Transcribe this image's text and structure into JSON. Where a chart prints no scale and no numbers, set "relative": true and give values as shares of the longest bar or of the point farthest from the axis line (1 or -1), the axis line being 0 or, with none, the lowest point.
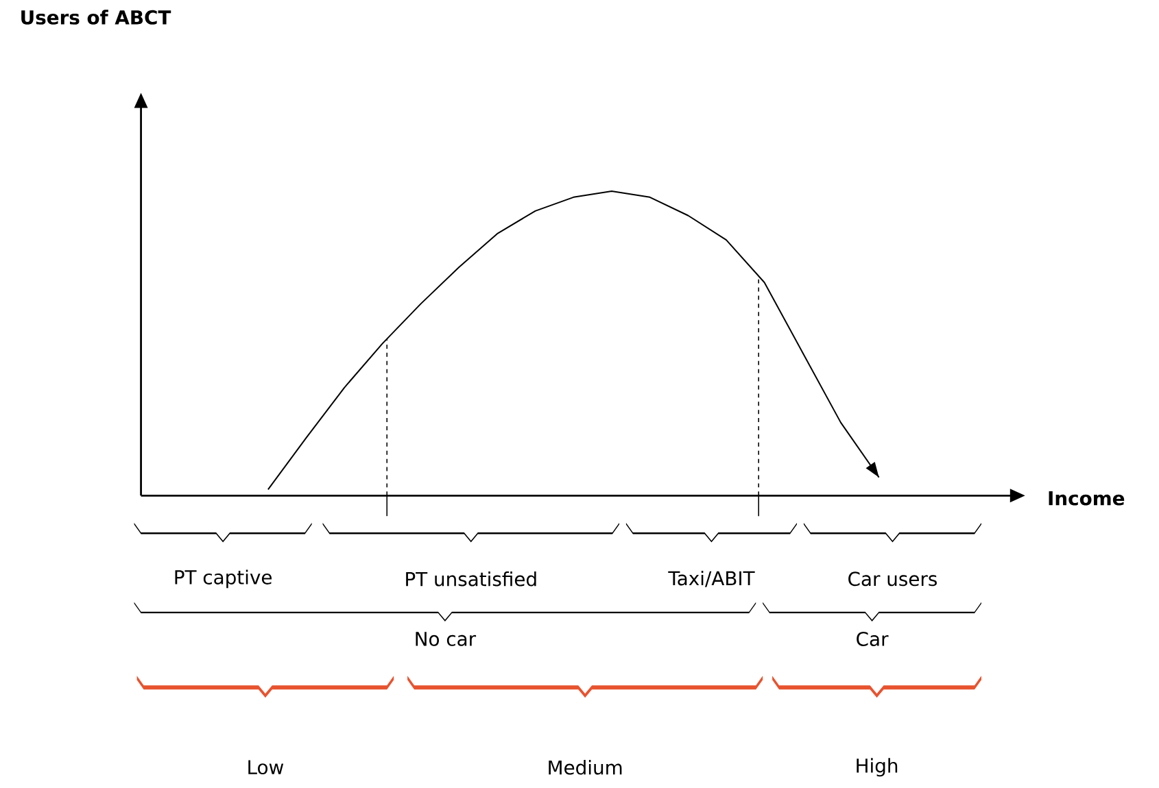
{
  "chart_data": {
    "type": "line",
    "relative": true,
    "tick_labels": false,
    "marker": "none",
    "line_style": "solid",
    "categories": [
      null,
      null,
      null,
      null,
      null,
      null,
      null,
      null,
      null,
      null,
      null,
      null,
      null,
      null,
      null,
      null,
      null
    ],
    "series": [
      {
        "color": "#000000",
        "values": [
          0.02,
          0.19,
          0.355,
          0.5,
          0.63,
          0.75,
          0.86,
          0.935,
          0.98,
          1.0,
          0.98,
          0.92,
          0.84,
          0.7,
          0.47,
          0.24,
          0.06
        ]
      }
    ],
    "annotations": [
      "Users of ABCT",
      "Income",
      "PT captive",
      "PT unsatisfied",
      "Taxi/ABIT",
      "Car users",
      "No car",
      "Car",
      "Low",
      "Medium",
      "High"
    ]
  }
}
